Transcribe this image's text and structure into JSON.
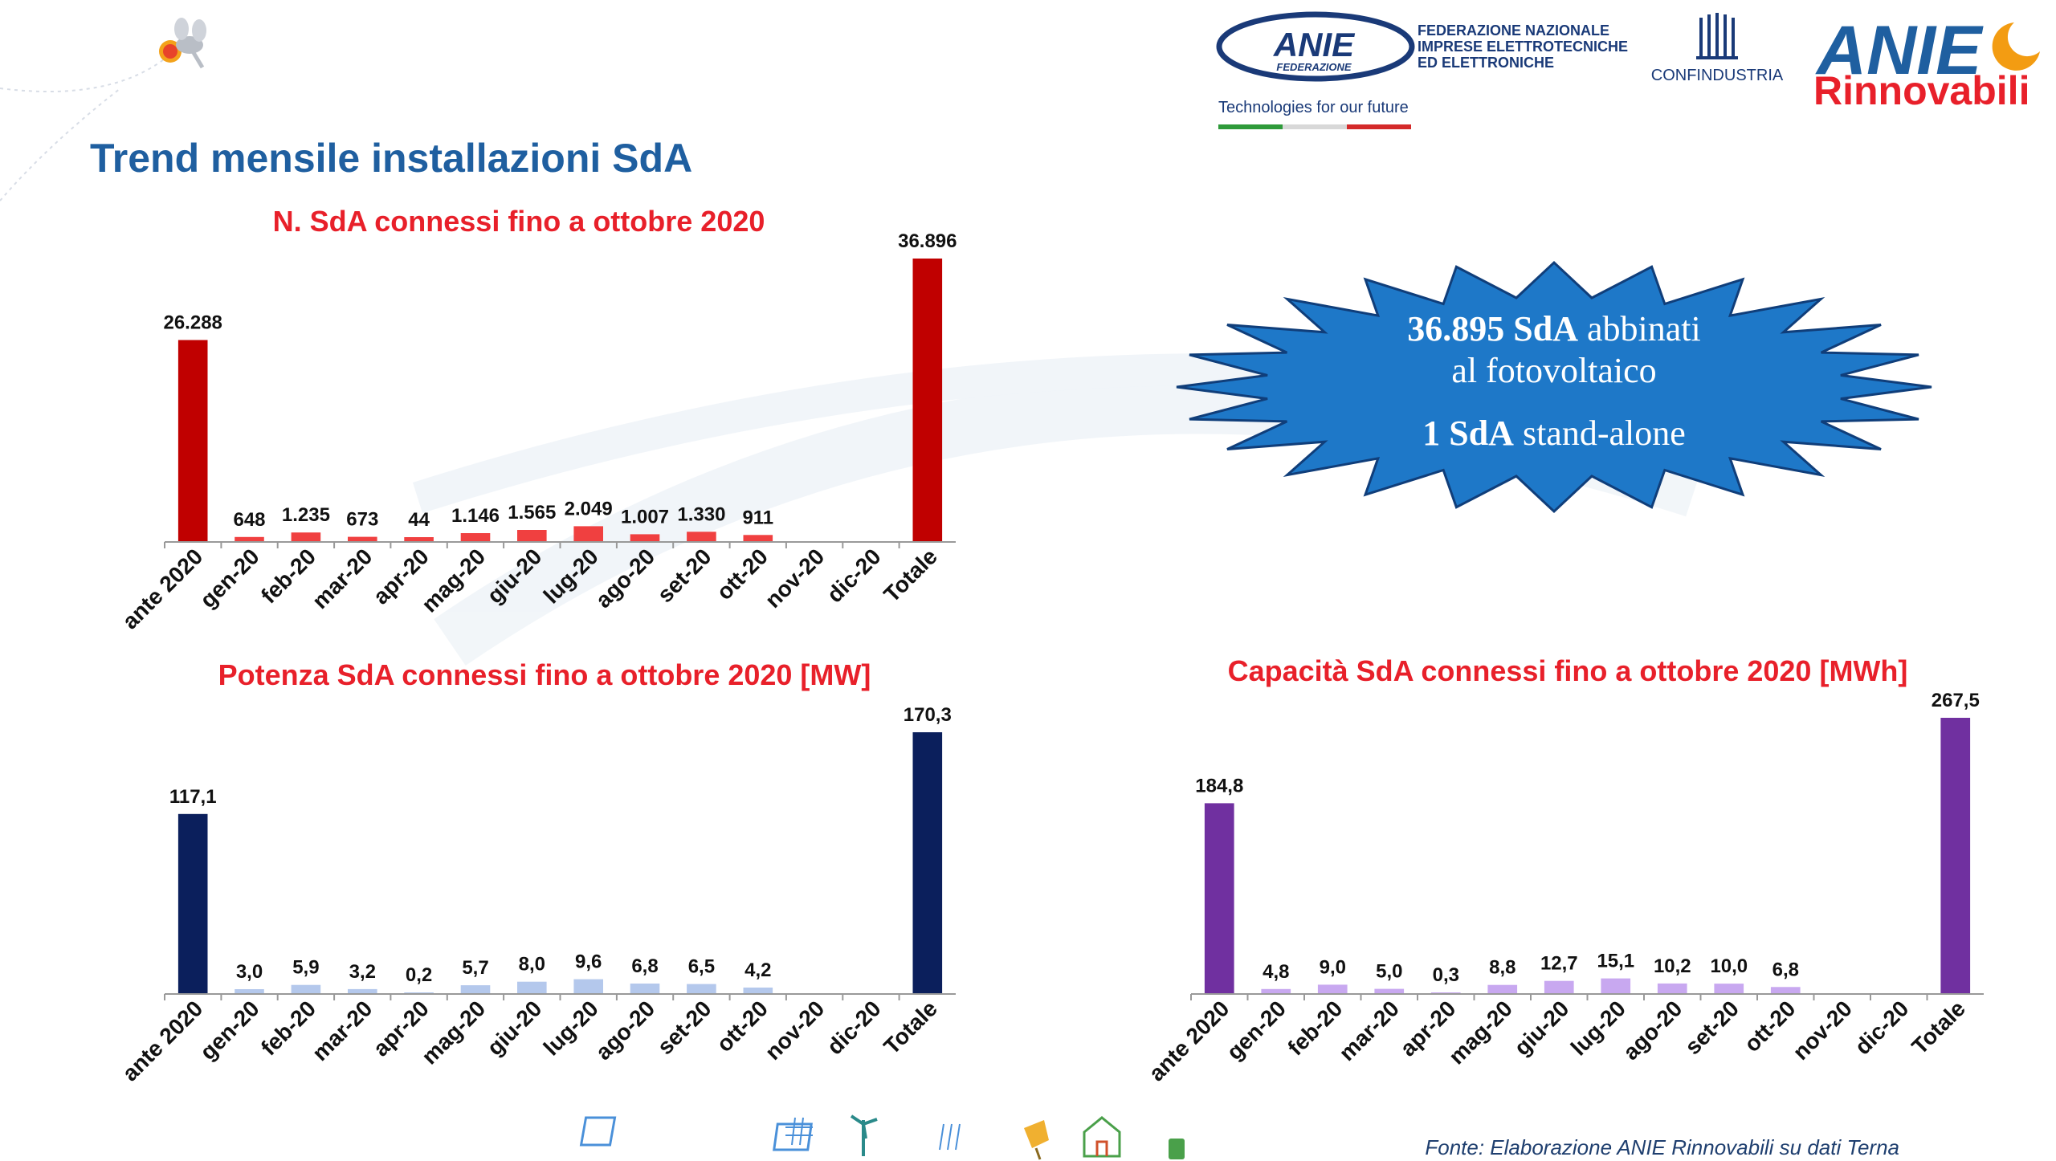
{
  "page": {
    "title": "Trend mensile installazioni SdA",
    "source": "Fonte: Elaborazione ANIE Rinnovabili su dati Terna"
  },
  "logos": {
    "anie_federazione": "ANIE",
    "anie_federazione_sub": "FEDERAZIONE",
    "federazione_line1": "FEDERAZIONE NAZIONALE",
    "federazione_line2": "IMPRESE ELETTROTECNICHE",
    "federazione_line3": "ED ELETTRONICHE",
    "tagline": "Technologies for our future",
    "confindustria": "CONFINDUSTRIA",
    "anie_rinnovabili_top": "ANIE",
    "anie_rinnovabili_bottom": "Rinnovabili"
  },
  "burst": {
    "line1_bold": "36.895 SdA",
    "line1_rest": " abbinati",
    "line2": "al fotovoltaico",
    "line3_bold": "1 SdA",
    "line3_rest": " stand-alone",
    "fill_color": "#1e78c8"
  },
  "chart_data": [
    {
      "type": "bar",
      "title": "N. SdA connessi fino a ottobre 2020",
      "categories": [
        "ante 2020",
        "gen-20",
        "feb-20",
        "mar-20",
        "apr-20",
        "mag-20",
        "giu-20",
        "lug-20",
        "ago-20",
        "set-20",
        "ott-20",
        "nov-20",
        "dic-20",
        "Totale"
      ],
      "values": [
        26288,
        648,
        1235,
        673,
        44,
        1146,
        1565,
        2049,
        1007,
        1330,
        911,
        null,
        null,
        36896
      ],
      "labels": [
        "26.288",
        "648",
        "1.235",
        "673",
        "44",
        "1.146",
        "1.565",
        "2.049",
        "1.007",
        "1.330",
        "911",
        "",
        "",
        "36.896"
      ],
      "ylim": [
        0,
        36896
      ],
      "colors": {
        "main": "#c00000",
        "month": "#f04040"
      },
      "title_color": "#e8202a"
    },
    {
      "type": "bar",
      "title": "Potenza SdA connessi fino a ottobre 2020 [MW]",
      "categories": [
        "ante 2020",
        "gen-20",
        "feb-20",
        "mar-20",
        "apr-20",
        "mag-20",
        "giu-20",
        "lug-20",
        "ago-20",
        "set-20",
        "ott-20",
        "nov-20",
        "dic-20",
        "Totale"
      ],
      "values": [
        117.1,
        3.0,
        5.9,
        3.2,
        0.2,
        5.7,
        8.0,
        9.6,
        6.8,
        6.5,
        4.2,
        null,
        null,
        170.3
      ],
      "labels": [
        "117,1",
        "3,0",
        "5,9",
        "3,2",
        "0,2",
        "5,7",
        "8,0",
        "9,6",
        "6,8",
        "6,5",
        "4,2",
        "",
        "",
        "170,3"
      ],
      "ylim": [
        0,
        170.3
      ],
      "colors": {
        "main": "#0b1f5c",
        "month": "#b4c8ec"
      },
      "title_color": "#e8202a"
    },
    {
      "type": "bar",
      "title": "Capacità SdA connessi fino a ottobre 2020 [MWh]",
      "categories": [
        "ante 2020",
        "gen-20",
        "feb-20",
        "mar-20",
        "apr-20",
        "mag-20",
        "giu-20",
        "lug-20",
        "ago-20",
        "set-20",
        "ott-20",
        "nov-20",
        "dic-20",
        "Totale"
      ],
      "values": [
        184.8,
        4.8,
        9.0,
        5.0,
        0.3,
        8.8,
        12.7,
        15.1,
        10.2,
        10.0,
        6.8,
        null,
        null,
        267.5
      ],
      "labels": [
        "184,8",
        "4,8",
        "9,0",
        "5,0",
        "0,3",
        "8,8",
        "12,7",
        "15,1",
        "10,2",
        "10,0",
        "6,8",
        "",
        "",
        "267,5"
      ],
      "ylim": [
        0,
        267.5
      ],
      "colors": {
        "main": "#7030a0",
        "month": "#c8a8f0"
      },
      "title_color": "#e8202a"
    }
  ]
}
